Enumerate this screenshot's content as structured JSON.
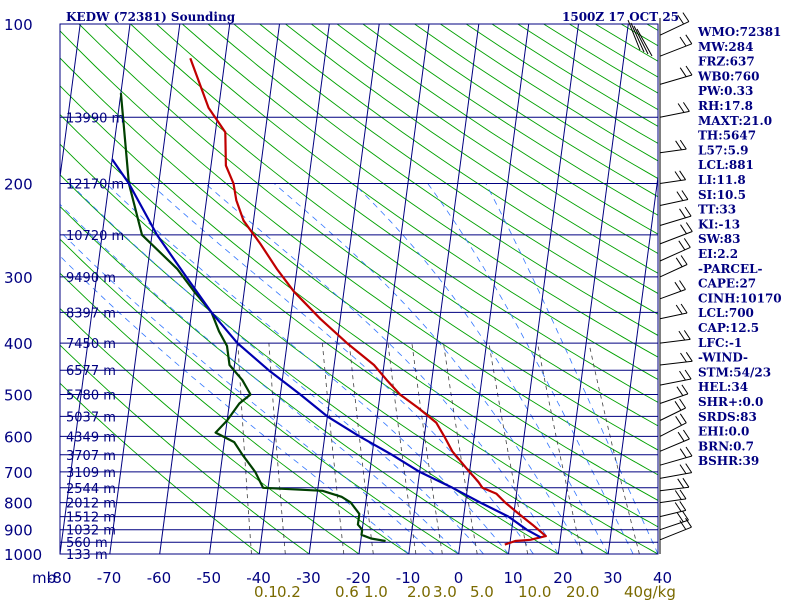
{
  "chart_data": {
    "type": "line",
    "title": "KEDW (72381) Sounding",
    "subtitle": "1500Z 17 OCT 25",
    "pressure_axis": {
      "unit_label": "mb",
      "ticks": [
        100,
        200,
        300,
        400,
        500,
        600,
        700,
        800,
        900,
        1000
      ],
      "range": [
        100,
        1000
      ],
      "scale": "log"
    },
    "temperature_axis": {
      "ticks": [
        -80,
        -70,
        -60,
        -50,
        -40,
        -30,
        -20,
        -10,
        0,
        10,
        20,
        30,
        40
      ],
      "range": [
        -80,
        40
      ]
    },
    "mixing_ratio_labels": [
      "0.1",
      "0.2",
      "0.6",
      "1.0",
      "2.0",
      "3.0",
      "5.0",
      "10.0",
      "20.0",
      "40g/kg"
    ],
    "height_labels": [
      {
        "p": 150,
        "label": "13990 m"
      },
      {
        "p": 200,
        "label": "12170 m"
      },
      {
        "p": 250,
        "label": "10720 m"
      },
      {
        "p": 300,
        "label": "9490 m"
      },
      {
        "p": 350,
        "label": "8397 m"
      },
      {
        "p": 400,
        "label": "7450 m"
      },
      {
        "p": 450,
        "label": "6577 m"
      },
      {
        "p": 500,
        "label": "5780 m"
      },
      {
        "p": 550,
        "label": "5037 m"
      },
      {
        "p": 600,
        "label": "4349 m"
      },
      {
        "p": 650,
        "label": "3707 m"
      },
      {
        "p": 700,
        "label": "3109 m"
      },
      {
        "p": 750,
        "label": "2544 m"
      },
      {
        "p": 800,
        "label": "2012 m"
      },
      {
        "p": 850,
        "label": "1512 m"
      },
      {
        "p": 900,
        "label": "1032 m"
      },
      {
        "p": 950,
        "label": "560 m"
      },
      {
        "p": 1000,
        "label": "133 m"
      }
    ],
    "series": [
      {
        "key": "temperature",
        "color": "#c00000",
        "points": [
          [
            116,
            -67
          ],
          [
            144,
            -62
          ],
          [
            160,
            -58
          ],
          [
            185,
            -57
          ],
          [
            200,
            -55
          ],
          [
            215,
            -54
          ],
          [
            235,
            -52
          ],
          [
            260,
            -48
          ],
          [
            290,
            -44
          ],
          [
            320,
            -40
          ],
          [
            360,
            -34
          ],
          [
            400,
            -28
          ],
          [
            440,
            -22
          ],
          [
            470,
            -19
          ],
          [
            500,
            -16
          ],
          [
            530,
            -12
          ],
          [
            565,
            -8
          ],
          [
            600,
            -6
          ],
          [
            640,
            -4
          ],
          [
            700,
            0
          ],
          [
            730,
            2
          ],
          [
            750,
            3
          ],
          [
            770,
            6
          ],
          [
            800,
            8
          ],
          [
            840,
            11
          ],
          [
            880,
            14
          ],
          [
            925,
            17
          ],
          [
            940,
            14
          ],
          [
            945,
            11
          ],
          [
            960,
            9
          ]
        ]
      },
      {
        "key": "dewpoint",
        "color": "#004000",
        "points": [
          [
            135,
            -80
          ],
          [
            200,
            -76
          ],
          [
            250,
            -72
          ],
          [
            290,
            -64
          ],
          [
            320,
            -60
          ],
          [
            350,
            -56
          ],
          [
            380,
            -54
          ],
          [
            405,
            -52
          ],
          [
            440,
            -51
          ],
          [
            470,
            -48
          ],
          [
            500,
            -46
          ],
          [
            520,
            -48
          ],
          [
            560,
            -50
          ],
          [
            590,
            -52
          ],
          [
            615,
            -48
          ],
          [
            650,
            -46
          ],
          [
            700,
            -43
          ],
          [
            750,
            -41
          ],
          [
            760,
            -29
          ],
          [
            780,
            -25
          ],
          [
            800,
            -23
          ],
          [
            840,
            -21
          ],
          [
            880,
            -21
          ],
          [
            900,
            -20
          ],
          [
            920,
            -20
          ],
          [
            935,
            -18
          ],
          [
            945,
            -15
          ]
        ]
      },
      {
        "key": "parcel",
        "color": "#0000b0",
        "points": [
          [
            180,
            -80
          ],
          [
            200,
            -76
          ],
          [
            250,
            -69
          ],
          [
            300,
            -62
          ],
          [
            350,
            -56
          ],
          [
            400,
            -50
          ],
          [
            450,
            -43
          ],
          [
            500,
            -36
          ],
          [
            550,
            -30
          ],
          [
            600,
            -23
          ],
          [
            650,
            -16
          ],
          [
            700,
            -10
          ],
          [
            750,
            -3
          ],
          [
            800,
            3
          ],
          [
            850,
            9
          ],
          [
            900,
            13
          ],
          [
            930,
            16
          ]
        ]
      }
    ],
    "wind_barb_pressures": [
      105,
      115,
      130,
      150,
      175,
      200,
      220,
      240,
      260,
      280,
      300,
      330,
      360,
      400,
      440,
      480,
      520,
      560,
      600,
      640,
      680,
      720,
      760,
      800,
      850,
      900,
      940
    ],
    "indices": [
      "WMO:72381",
      "MW:284",
      "FRZ:637",
      "WB0:760",
      "PW:0.33",
      "RH:17.8",
      "MAXT:21.0",
      "TH:5647",
      "L57:5.9",
      "LCL:881",
      "LI:11.8",
      "SI:10.5",
      "TT:33",
      "KI:-13",
      "SW:83",
      "EI:2.2",
      "-PARCEL-",
      "CAPE:27",
      "CINH:10170",
      "LCL:700",
      "CAP:12.5",
      "LFC:-1",
      "-WIND-",
      "STM:54/23",
      "HEL:34",
      "SHR+:0.0",
      "SRDS:83",
      "EHI:0.0",
      "BRN:0.7",
      "BSHR:39"
    ],
    "colors": {
      "grid": "#000080",
      "dry_adiabat": "#00a000",
      "moist_adiabat": "#3377ff",
      "mixing_ratio": "#404040",
      "temperature": "#c00000",
      "dewpoint": "#004000",
      "parcel": "#0000b0"
    }
  }
}
